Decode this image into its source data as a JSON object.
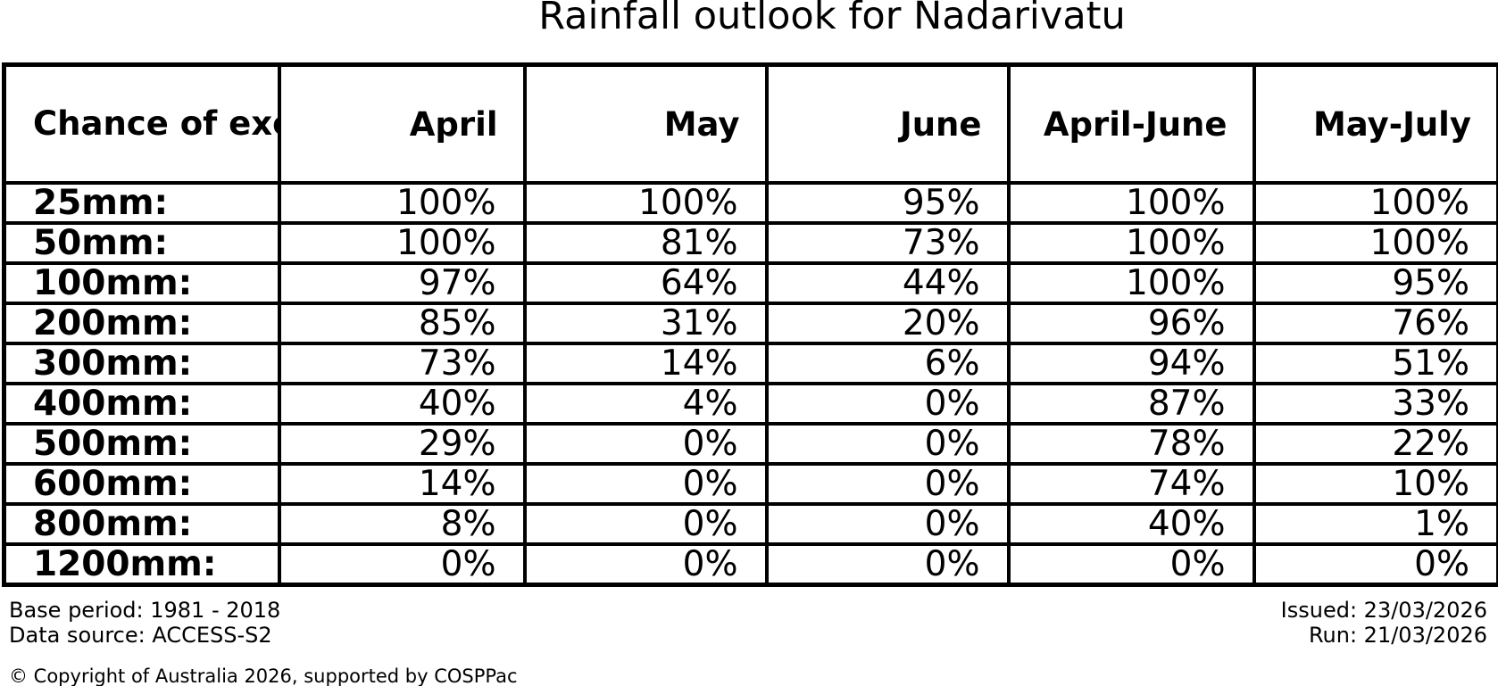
{
  "title": "Rainfall outlook for Nadarivatu",
  "table": {
    "corner_label": "Chance of\nexceeding\na threshold:",
    "columns": [
      "April",
      "May",
      "June",
      "April-June",
      "May-July"
    ],
    "rows": [
      {
        "threshold": "25mm:",
        "values": [
          "100%",
          "100%",
          "95%",
          "100%",
          "100%"
        ]
      },
      {
        "threshold": "50mm:",
        "values": [
          "100%",
          "81%",
          "73%",
          "100%",
          "100%"
        ]
      },
      {
        "threshold": "100mm:",
        "values": [
          "97%",
          "64%",
          "44%",
          "100%",
          "95%"
        ]
      },
      {
        "threshold": "200mm:",
        "values": [
          "85%",
          "31%",
          "20%",
          "96%",
          "76%"
        ]
      },
      {
        "threshold": "300mm:",
        "values": [
          "73%",
          "14%",
          "6%",
          "94%",
          "51%"
        ]
      },
      {
        "threshold": "400mm:",
        "values": [
          "40%",
          "4%",
          "0%",
          "87%",
          "33%"
        ]
      },
      {
        "threshold": "500mm:",
        "values": [
          "29%",
          "0%",
          "0%",
          "78%",
          "22%"
        ]
      },
      {
        "threshold": "600mm:",
        "values": [
          "14%",
          "0%",
          "0%",
          "74%",
          "10%"
        ]
      },
      {
        "threshold": "800mm:",
        "values": [
          "8%",
          "0%",
          "0%",
          "40%",
          "1%"
        ]
      },
      {
        "threshold": "1200mm:",
        "values": [
          "0%",
          "0%",
          "0%",
          "0%",
          "0%"
        ]
      }
    ]
  },
  "footer": {
    "base_period": "Base period: 1981 - 2018",
    "data_source": "Data source: ACCESS-S2",
    "issued": "Issued: 23/03/2026",
    "run": "Run: 21/03/2026",
    "copyright": "© Copyright of Australia 2026, supported by COSPPac"
  },
  "colors": {
    "text": "#000000",
    "border": "#000000",
    "background": "#ffffff"
  },
  "chart_data": {
    "type": "table",
    "title": "Rainfall outlook for Nadarivatu",
    "row_header": "Chance of exceeding a threshold:",
    "columns": [
      "April",
      "May",
      "June",
      "April-June",
      "May-July"
    ],
    "row_labels": [
      "25mm:",
      "50mm:",
      "100mm:",
      "200mm:",
      "300mm:",
      "400mm:",
      "500mm:",
      "600mm:",
      "800mm:",
      "1200mm:"
    ],
    "values_percent": [
      [
        100,
        100,
        95,
        100,
        100
      ],
      [
        100,
        81,
        73,
        100,
        100
      ],
      [
        97,
        64,
        44,
        100,
        95
      ],
      [
        85,
        31,
        20,
        96,
        76
      ],
      [
        73,
        14,
        6,
        94,
        51
      ],
      [
        40,
        4,
        0,
        87,
        33
      ],
      [
        29,
        0,
        0,
        78,
        22
      ],
      [
        14,
        0,
        0,
        74,
        10
      ],
      [
        8,
        0,
        0,
        40,
        1
      ],
      [
        0,
        0,
        0,
        0,
        0
      ]
    ],
    "notes": {
      "base_period": "1981 - 2018",
      "data_source": "ACCESS-S2",
      "issued": "23/03/2026",
      "run": "21/03/2026"
    }
  }
}
